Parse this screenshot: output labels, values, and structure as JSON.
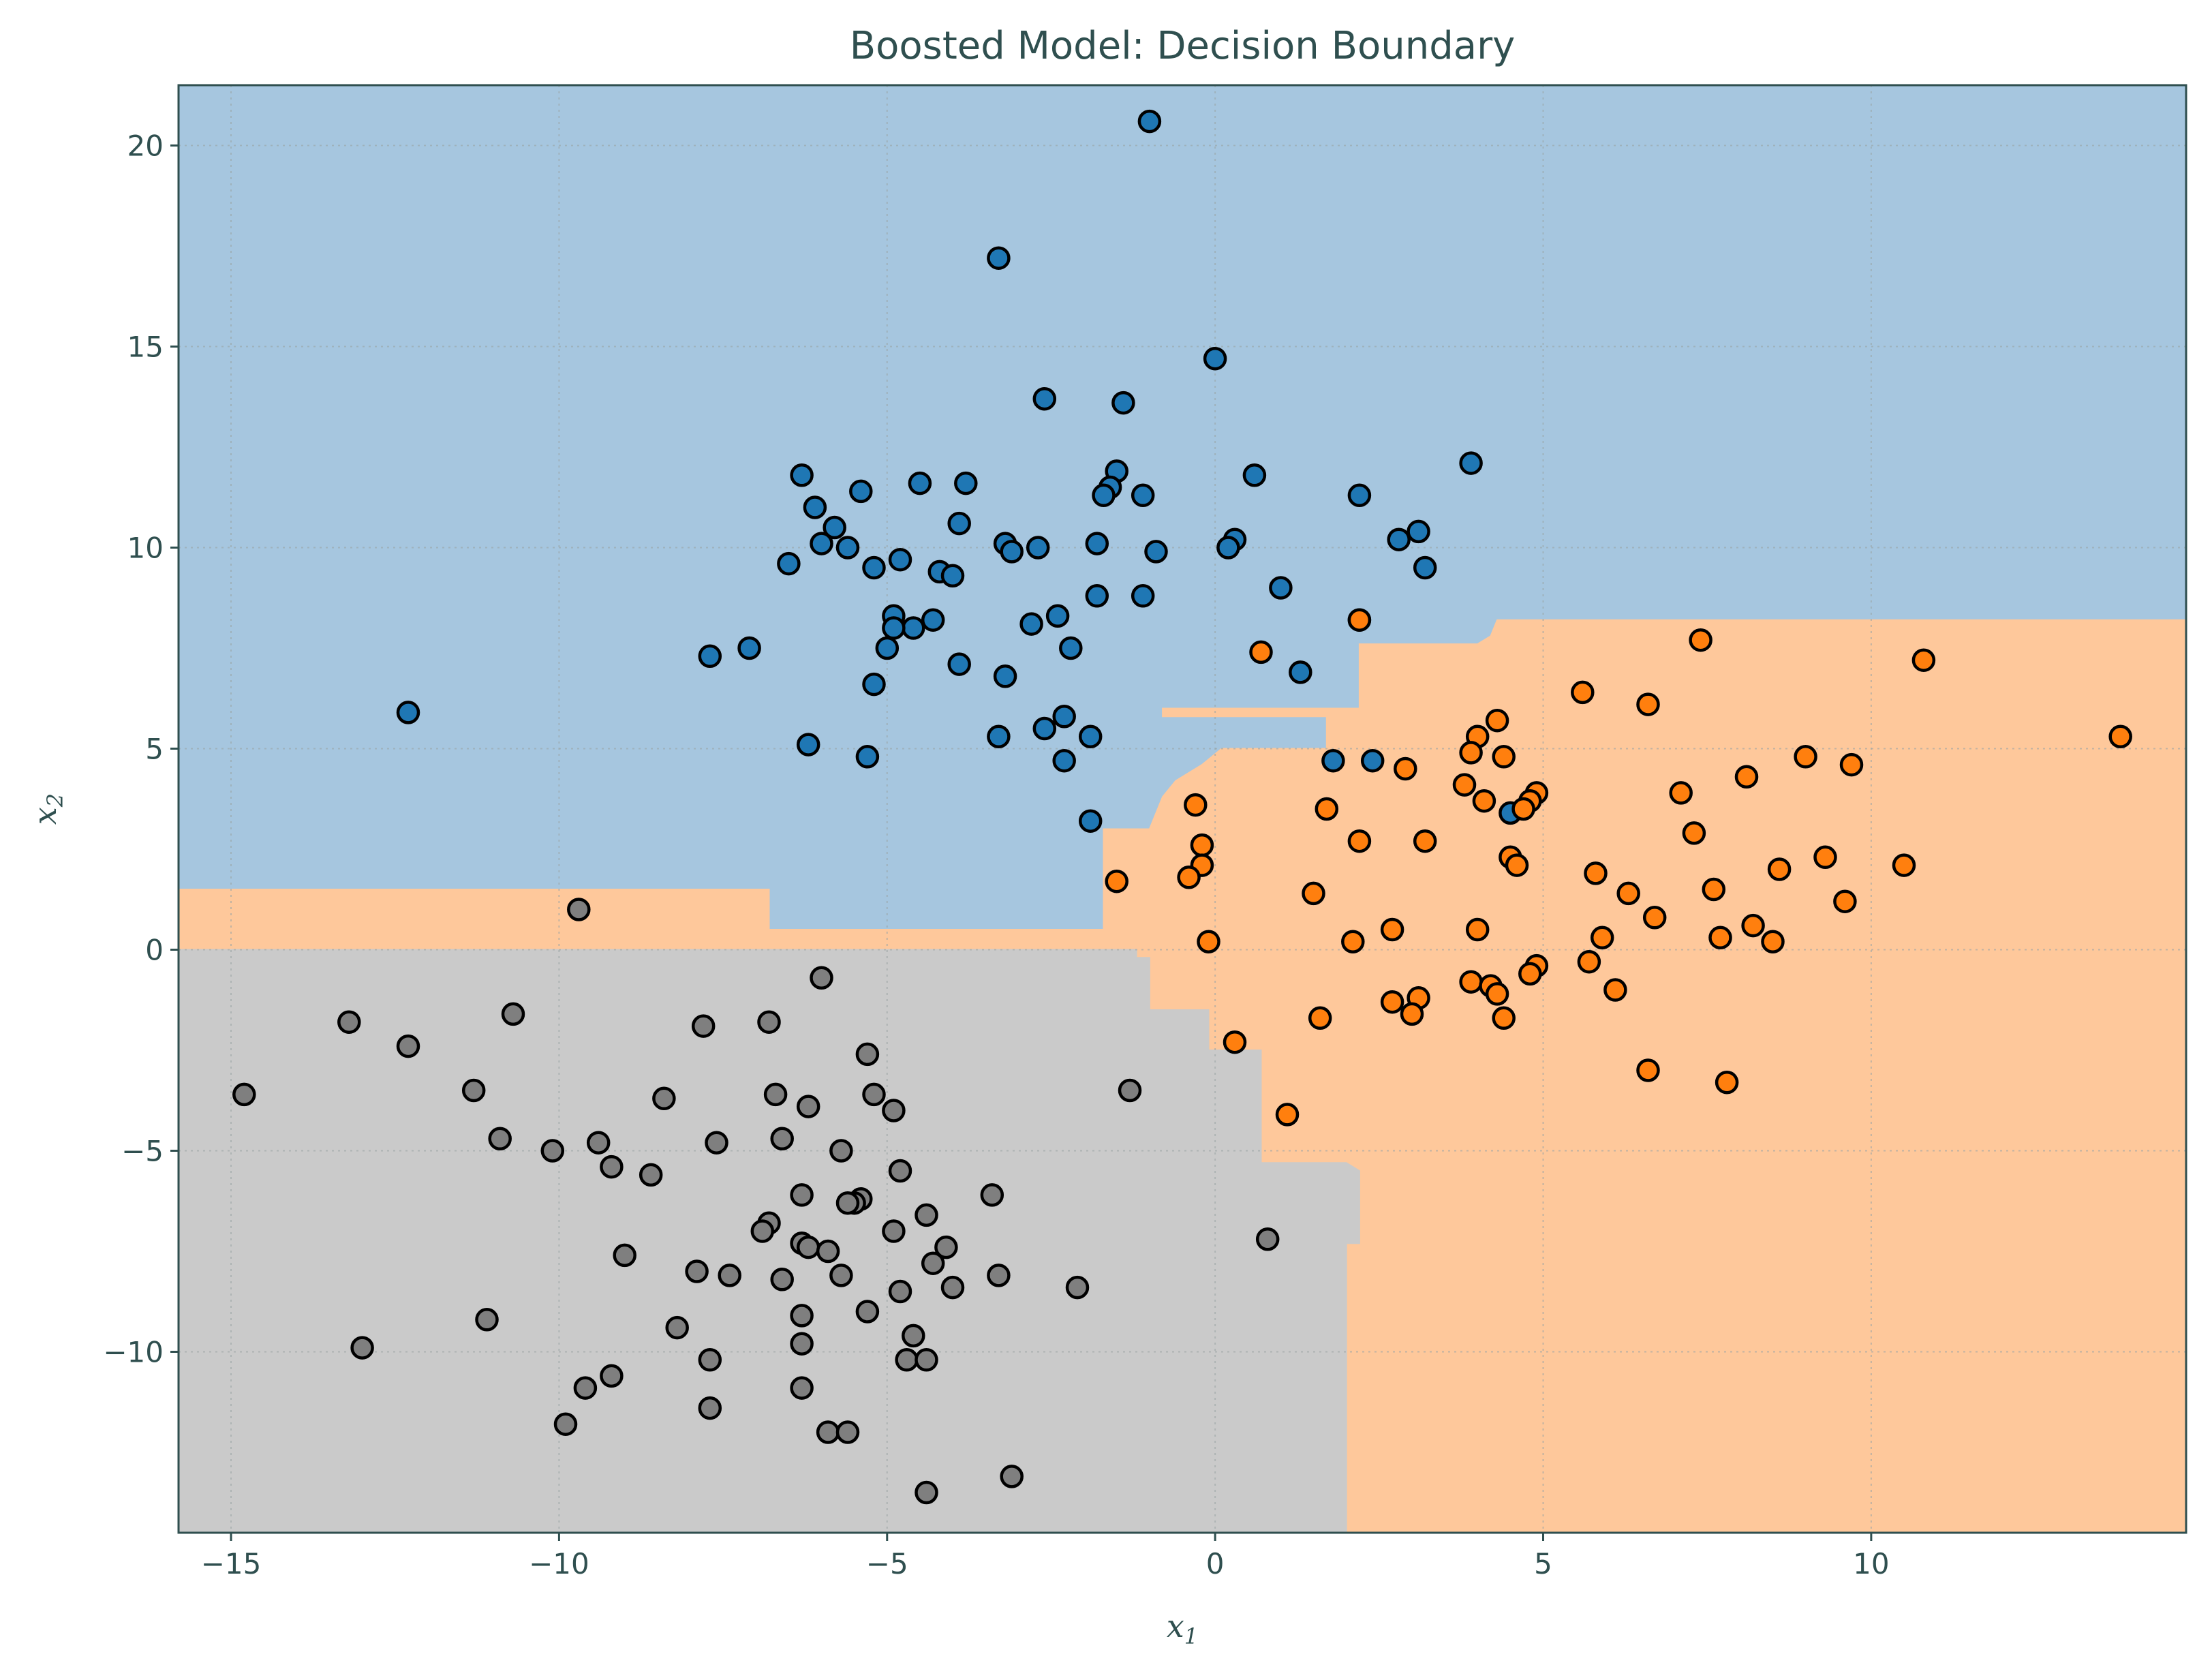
{
  "chart_data": {
    "type": "scatter",
    "title": "Boosted Model: Decision Boundary",
    "xlabel": "x",
    "xlabel_sub": "1",
    "ylabel": "x",
    "ylabel_sub": "2",
    "xlim": [
      -15.8,
      14.8
    ],
    "ylim": [
      -14.5,
      21.5
    ],
    "xticks": [
      -15,
      -10,
      -5,
      0,
      5,
      10
    ],
    "xtick_labels": [
      "−15",
      "−10",
      "−5",
      "0",
      "5",
      "10"
    ],
    "yticks": [
      -10,
      -5,
      0,
      5,
      10,
      15,
      20
    ],
    "ytick_labels": [
      "−10",
      "−5",
      "0",
      "5",
      "10",
      "15",
      "20"
    ],
    "grid": true,
    "legend": "none",
    "colors": {
      "class_blue": "#1f77b4",
      "class_orange": "#ff7f0e",
      "class_gray": "#7f7f7f",
      "region_blue": "#a6c6df",
      "region_orange": "#fec89b",
      "region_gray": "#cacaca",
      "text": "#2f4f4f"
    },
    "regions": [
      {
        "class": "blue",
        "fill": "#a6c6df",
        "boundary": [
          [
            -15.8,
            21.5
          ],
          [
            14.8,
            21.5
          ],
          [
            14.8,
            8.2
          ],
          [
            4.3,
            8.2
          ],
          [
            4.2,
            7.8
          ],
          [
            4.0,
            7.6
          ],
          [
            2.2,
            7.6
          ],
          [
            2.2,
            6.0
          ],
          [
            -0.8,
            6.0
          ],
          [
            -0.8,
            5.8
          ],
          [
            1.7,
            5.8
          ],
          [
            1.7,
            5.0
          ],
          [
            0.1,
            5.0
          ],
          [
            -0.2,
            4.6
          ],
          [
            -0.6,
            4.2
          ],
          [
            -0.8,
            3.8
          ],
          [
            -1.0,
            3.0
          ],
          [
            -1.7,
            3.0
          ],
          [
            -1.7,
            0.5
          ],
          [
            -6.8,
            0.5
          ],
          [
            -6.8,
            1.5
          ],
          [
            -15.8,
            1.5
          ]
        ]
      },
      {
        "class": "orange",
        "fill": "#fec89b",
        "boundary": [
          [
            -15.8,
            1.5
          ],
          [
            -6.8,
            1.5
          ],
          [
            -6.8,
            0.5
          ],
          [
            -1.7,
            0.5
          ],
          [
            -1.7,
            3.0
          ],
          [
            -1.0,
            3.0
          ],
          [
            -0.8,
            3.8
          ],
          [
            -0.6,
            4.2
          ],
          [
            -0.2,
            4.6
          ],
          [
            0.1,
            5.0
          ],
          [
            1.7,
            5.0
          ],
          [
            1.7,
            5.8
          ],
          [
            -0.8,
            5.8
          ],
          [
            -0.8,
            6.0
          ],
          [
            2.2,
            6.0
          ],
          [
            2.2,
            7.6
          ],
          [
            4.0,
            7.6
          ],
          [
            4.2,
            7.8
          ],
          [
            4.3,
            8.2
          ],
          [
            14.8,
            8.2
          ],
          [
            14.8,
            -14.5
          ],
          [
            2.0,
            -14.5
          ],
          [
            2.0,
            -7.3
          ],
          [
            2.2,
            -7.3
          ],
          [
            2.2,
            -5.5
          ],
          [
            2.0,
            -5.3
          ],
          [
            0.7,
            -5.3
          ],
          [
            0.7,
            -2.5
          ],
          [
            -0.1,
            -2.5
          ],
          [
            -0.1,
            -1.5
          ],
          [
            -1.0,
            -1.5
          ],
          [
            -1.0,
            -0.2
          ],
          [
            -1.2,
            -0.2
          ],
          [
            -1.2,
            0.0
          ],
          [
            -15.8,
            0.0
          ]
        ]
      },
      {
        "class": "gray",
        "fill": "#cacaca",
        "boundary": [
          [
            -15.8,
            0.0
          ],
          [
            -1.2,
            0.0
          ],
          [
            -1.2,
            -0.2
          ],
          [
            -1.0,
            -0.2
          ],
          [
            -1.0,
            -1.5
          ],
          [
            -0.1,
            -1.5
          ],
          [
            -0.1,
            -2.5
          ],
          [
            0.7,
            -2.5
          ],
          [
            0.7,
            -5.3
          ],
          [
            2.0,
            -5.3
          ],
          [
            2.2,
            -5.5
          ],
          [
            2.2,
            -7.3
          ],
          [
            2.0,
            -7.3
          ],
          [
            2.0,
            -14.5
          ],
          [
            -15.8,
            -14.5
          ]
        ]
      }
    ],
    "series": [
      {
        "class": "blue",
        "color": "#1f77b4",
        "x": [
          -1.0,
          -3.3,
          0.0,
          -2.6,
          -1.4,
          -6.3,
          -5.4,
          -4.5,
          -3.8,
          -1.5,
          -1.6,
          -1.7,
          -1.1,
          0.6,
          3.9,
          2.2,
          -6.1,
          -5.8,
          -6.0,
          -5.6,
          -5.2,
          -6.5,
          -4.8,
          -4.2,
          -4.0,
          -3.2,
          -3.1,
          -2.7,
          -1.8,
          -0.9,
          0.3,
          0.2,
          1.0,
          2.8,
          3.1,
          3.2,
          -3.9,
          -4.9,
          -4.6,
          -4.3,
          -4.9,
          -5.0,
          -2.8,
          -2.4,
          -2.2,
          -1.8,
          -1.1,
          2.2,
          -7.7,
          -7.1,
          -3.9,
          -5.2,
          -3.2,
          -2.6,
          -2.3,
          -1.9,
          -3.3,
          -6.2,
          -5.3,
          -2.3,
          -12.3,
          1.3,
          -1.9,
          1.8,
          2.4,
          4.5
        ],
        "y": [
          20.6,
          17.2,
          14.7,
          13.7,
          13.6,
          11.8,
          11.4,
          11.6,
          11.6,
          11.9,
          11.5,
          11.3,
          11.3,
          11.8,
          12.1,
          11.3,
          11.0,
          10.5,
          10.1,
          10.0,
          9.5,
          9.6,
          9.7,
          9.4,
          9.3,
          10.1,
          9.9,
          10.0,
          10.1,
          9.9,
          10.2,
          10.0,
          9.0,
          10.2,
          10.4,
          9.5,
          10.6,
          8.3,
          8.0,
          8.2,
          8.0,
          7.5,
          8.1,
          8.3,
          7.5,
          8.8,
          8.8,
          8.2,
          7.3,
          7.5,
          7.1,
          6.6,
          6.8,
          5.5,
          5.8,
          5.3,
          5.3,
          5.1,
          4.8,
          4.7,
          5.9,
          6.9,
          3.2,
          4.7,
          4.7,
          3.4
        ]
      },
      {
        "class": "orange",
        "color": "#ff7f0e",
        "x": [
          7.4,
          10.8,
          0.7,
          2.2,
          5.6,
          6.6,
          4.3,
          4.0,
          13.8,
          9.0,
          9.7,
          8.1,
          7.1,
          4.4,
          3.9,
          4.1,
          3.8,
          4.9,
          4.8,
          4.7,
          -0.3,
          1.7,
          2.2,
          3.2,
          -0.2,
          -0.2,
          -0.4,
          -1.5,
          1.5,
          2.7,
          4.5,
          4.6,
          5.8,
          6.3,
          6.7,
          7.6,
          7.3,
          8.6,
          9.3,
          9.6,
          10.5,
          4.0,
          2.1,
          -0.1,
          5.9,
          5.7,
          7.7,
          8.2,
          8.5,
          4.9,
          4.8,
          3.9,
          4.2,
          4.3,
          6.1,
          3.1,
          2.7,
          3.0,
          1.6,
          4.4,
          0.3,
          1.1,
          6.6,
          7.8,
          2.9
        ],
        "y": [
          7.7,
          7.2,
          7.4,
          8.2,
          6.4,
          6.1,
          5.7,
          5.3,
          5.3,
          4.8,
          4.6,
          4.3,
          3.9,
          4.8,
          4.9,
          3.7,
          4.1,
          3.9,
          3.7,
          3.5,
          3.6,
          3.5,
          2.7,
          2.7,
          2.6,
          2.1,
          1.8,
          1.7,
          1.4,
          0.5,
          2.3,
          2.1,
          1.9,
          1.4,
          0.8,
          1.5,
          2.9,
          2.0,
          2.3,
          1.2,
          2.1,
          0.5,
          0.2,
          0.2,
          0.3,
          -0.3,
          0.3,
          0.6,
          0.2,
          -0.4,
          -0.6,
          -0.8,
          -0.9,
          -1.1,
          -1.0,
          -1.2,
          -1.3,
          -1.6,
          -1.7,
          -1.7,
          -2.3,
          -4.1,
          -3.0,
          -3.3,
          4.5
        ]
      },
      {
        "class": "gray",
        "color": "#7f7f7f",
        "x": [
          -9.7,
          -6.0,
          -13.2,
          -12.3,
          -10.7,
          -7.8,
          -6.8,
          -5.3,
          -11.3,
          -14.8,
          -8.4,
          -6.7,
          -6.2,
          -5.2,
          -4.9,
          -1.3,
          -10.9,
          -9.4,
          -7.6,
          -6.6,
          -10.1,
          -9.2,
          -5.7,
          -4.8,
          -8.6,
          -3.4,
          -6.3,
          -5.4,
          -5.5,
          -5.6,
          -4.4,
          -6.8,
          -6.9,
          -4.9,
          -6.3,
          -9.0,
          -6.2,
          -5.9,
          -4.1,
          -4.3,
          -7.9,
          -7.4,
          -5.7,
          -6.6,
          -4.0,
          -3.3,
          -2.1,
          -4.8,
          -5.3,
          -11.1,
          -6.3,
          -8.2,
          -4.6,
          -13.0,
          -6.3,
          -7.7,
          -4.7,
          -4.4,
          -9.2,
          -9.6,
          -6.3,
          -7.7,
          -9.9,
          -5.9,
          -5.6,
          -3.1,
          -4.4,
          0.8
        ],
        "y": [
          1.0,
          -0.7,
          -1.8,
          -2.4,
          -1.6,
          -1.9,
          -1.8,
          -2.6,
          -3.5,
          -3.6,
          -3.7,
          -3.6,
          -3.9,
          -3.6,
          -4.0,
          -3.5,
          -4.7,
          -4.8,
          -4.8,
          -4.7,
          -5.0,
          -5.4,
          -5.0,
          -5.5,
          -5.6,
          -6.1,
          -6.1,
          -6.2,
          -6.3,
          -6.3,
          -6.6,
          -6.8,
          -7.0,
          -7.0,
          -7.3,
          -7.6,
          -7.4,
          -7.5,
          -7.4,
          -7.8,
          -8.0,
          -8.1,
          -8.1,
          -8.2,
          -8.4,
          -8.1,
          -8.4,
          -8.5,
          -9.0,
          -9.2,
          -9.1,
          -9.4,
          -9.6,
          -9.9,
          -9.8,
          -10.2,
          -10.2,
          -10.2,
          -10.6,
          -10.9,
          -10.9,
          -11.4,
          -11.8,
          -12.0,
          -12.0,
          -13.1,
          -13.5,
          -7.2
        ]
      }
    ]
  }
}
